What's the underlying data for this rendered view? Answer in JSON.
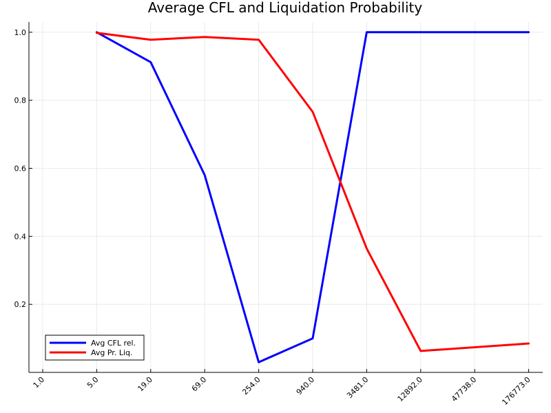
{
  "chart_data": {
    "type": "line",
    "title": "Average CFL and Liquidation Probability",
    "xlabel": "",
    "ylabel": "",
    "categories": [
      "1.0",
      "5.0",
      "19.0",
      "69.0",
      "254.0",
      "940.0",
      "3481.0",
      "12892.0",
      "47738.0",
      "176773.0"
    ],
    "y_ticks": [
      "0.2",
      "0.4",
      "0.6",
      "0.8",
      "1.0"
    ],
    "y_tick_values": [
      0.2,
      0.4,
      0.6,
      0.8,
      1.0
    ],
    "ylim": [
      0.0,
      1.03
    ],
    "grid": true,
    "legend_position": "bottom-left",
    "series": [
      {
        "name": "Avg CFL rel.",
        "color": "#0000ff",
        "points": [
          {
            "category": "5.0",
            "y": 1.0
          },
          {
            "category": "19.0",
            "y": 0.912
          },
          {
            "category": "69.0",
            "y": 0.58
          },
          {
            "category": "254.0",
            "y": 0.03
          },
          {
            "category": "940.0",
            "y": 0.1
          },
          {
            "category": "3481.0",
            "y": 1.0
          },
          {
            "category": "12892.0",
            "y": 1.0
          },
          {
            "category": "176773.0",
            "y": 1.0
          }
        ]
      },
      {
        "name": "Avg Pr. Liq.",
        "color": "#ff0000",
        "points": [
          {
            "category": "5.0",
            "y": 0.998
          },
          {
            "category": "19.0",
            "y": 0.978
          },
          {
            "category": "69.0",
            "y": 0.986
          },
          {
            "category": "254.0",
            "y": 0.978
          },
          {
            "category": "940.0",
            "y": 0.766
          },
          {
            "category": "3481.0",
            "y": 0.364
          },
          {
            "category": "12892.0",
            "y": 0.063
          },
          {
            "category": "176773.0",
            "y": 0.085
          }
        ]
      }
    ]
  }
}
